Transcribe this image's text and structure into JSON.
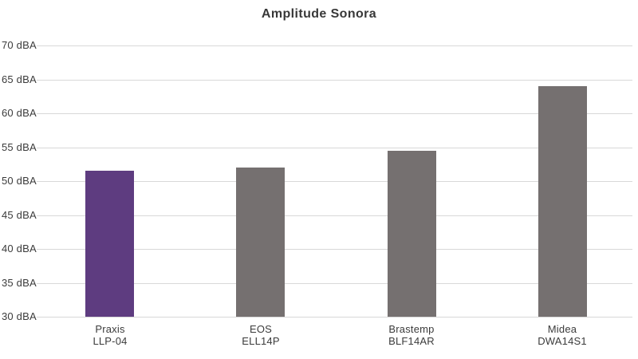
{
  "chart_data": {
    "type": "bar",
    "title": "Amplitude Sonora",
    "categories": [
      {
        "brand": "Praxis",
        "model": "LLP-04"
      },
      {
        "brand": "EOS",
        "model": "ELL14P"
      },
      {
        "brand": "Brastemp",
        "model": "BLF14AR"
      },
      {
        "brand": "Midea",
        "model": "DWA14S1"
      }
    ],
    "values": [
      51.5,
      52,
      54.5,
      64
    ],
    "unit": "dBA",
    "xlabel": "",
    "ylabel": "",
    "ylim": [
      30,
      70
    ],
    "ytick_step": 5,
    "ytick_labels": [
      "30 dBA",
      "35 dBA",
      "40 dBA",
      "45 dBA",
      "50 dBA",
      "55 dBA",
      "60 dBA",
      "65 dBA",
      "70 dBA"
    ],
    "grid": true,
    "legend": false,
    "bar_colors": [
      "#5E3C80",
      "#757070",
      "#757070",
      "#757070"
    ],
    "colors": {
      "highlight_bar": "#5E3C80",
      "default_bar": "#757070",
      "gridline": "#D8D8D8",
      "text": "#3B3B3B"
    }
  }
}
